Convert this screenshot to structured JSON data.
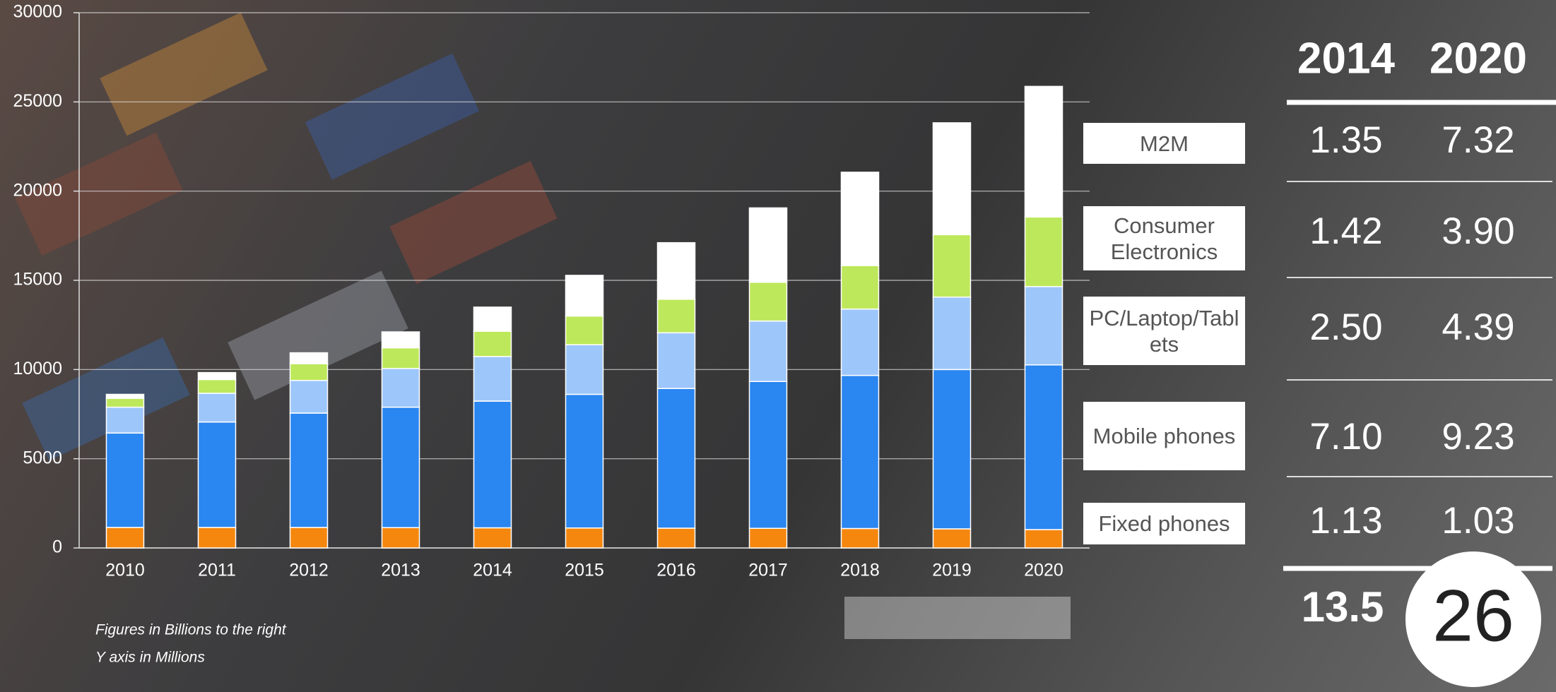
{
  "chart_data": {
    "type": "stacked-bar",
    "categories": [
      "2010",
      "2011",
      "2012",
      "2013",
      "2014",
      "2015",
      "2016",
      "2017",
      "2018",
      "2019",
      "2020"
    ],
    "series": [
      {
        "name": "Fixed phones",
        "color": "#f5870f",
        "values": [
          1150,
          1150,
          1150,
          1140,
          1130,
          1120,
          1110,
          1100,
          1090,
          1070,
          1030
        ]
      },
      {
        "name": "Mobile phones",
        "color": "#2a86f0",
        "values": [
          5290,
          5910,
          6410,
          6750,
          7100,
          7490,
          7830,
          8230,
          8580,
          8930,
          9230
        ]
      },
      {
        "name": "PC/Laptop/Tablets",
        "color": "#9dc6fb",
        "values": [
          1450,
          1610,
          1830,
          2170,
          2500,
          2780,
          3120,
          3390,
          3720,
          4060,
          4390
        ]
      },
      {
        "name": "Consumer Electronics",
        "color": "#bde85b",
        "values": [
          500,
          770,
          940,
          1160,
          1420,
          1610,
          1880,
          2170,
          2440,
          3500,
          3900
        ]
      },
      {
        "name": "M2M",
        "color": "#ffffff",
        "values": [
          220,
          390,
          610,
          890,
          1350,
          2280,
          3170,
          4170,
          5230,
          6270,
          7320
        ]
      }
    ],
    "ylim": [
      0,
      30000
    ],
    "yticks": [
      0,
      5000,
      10000,
      15000,
      20000,
      25000,
      30000
    ],
    "grid": true,
    "annotations": [
      "Figures in Billions to the right",
      "Y axis in Millions"
    ]
  },
  "table": {
    "columns": [
      "2014",
      "2020"
    ],
    "rows": [
      [
        "1.35",
        "7.32"
      ],
      [
        "1.42",
        "3.90"
      ],
      [
        "2.50",
        "4.39"
      ],
      [
        "7.10",
        "9.23"
      ],
      [
        "1.13",
        "1.03"
      ]
    ],
    "totals": [
      "13.5",
      "26"
    ]
  }
}
